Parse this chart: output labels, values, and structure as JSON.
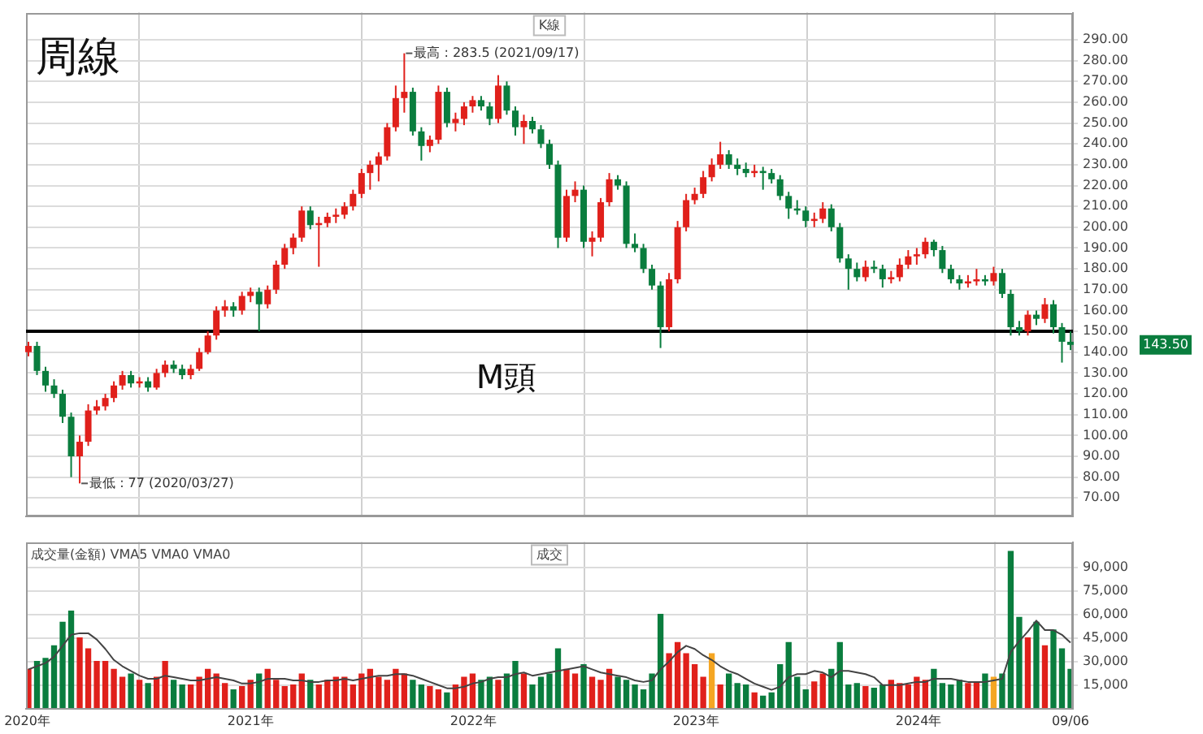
{
  "chart_data": [
    {
      "type": "candlestick",
      "title": "周線",
      "tick_labels": "y",
      "grid": true,
      "x": [
        "2020-01-03",
        "2020-01-17",
        "2020-01-31",
        "2020-02-14",
        "2020-02-28",
        "2020-03-13",
        "2020-03-27",
        "2020-04-10",
        "2020-04-24",
        "2020-05-08",
        "2020-05-22",
        "2020-06-05",
        "2020-06-19",
        "2020-07-03",
        "2020-07-17",
        "2020-07-31",
        "2020-08-14",
        "2020-08-28",
        "2020-09-11",
        "2020-09-25",
        "2020-10-09",
        "2020-10-23",
        "2020-11-06",
        "2020-11-20",
        "2020-12-04",
        "2020-12-18",
        "2021-01-01",
        "2021-01-15",
        "2021-01-29",
        "2021-02-12",
        "2021-02-26",
        "2021-03-12",
        "2021-03-26",
        "2021-04-09",
        "2021-04-23",
        "2021-05-07",
        "2021-05-21",
        "2021-06-04",
        "2021-06-18",
        "2021-07-02",
        "2021-07-16",
        "2021-07-30",
        "2021-08-13",
        "2021-08-27",
        "2021-09-10",
        "2021-09-24",
        "2021-10-08",
        "2021-10-22",
        "2021-11-05",
        "2021-11-19",
        "2021-12-03",
        "2021-12-17",
        "2021-12-31",
        "2022-01-14",
        "2022-01-28",
        "2022-02-11",
        "2022-02-25",
        "2022-03-11",
        "2022-03-25",
        "2022-04-08",
        "2022-04-22",
        "2022-05-06",
        "2022-05-20",
        "2022-06-03",
        "2022-06-17",
        "2022-07-01",
        "2022-07-15",
        "2022-07-29",
        "2022-08-12",
        "2022-08-26",
        "2022-09-09",
        "2022-09-23",
        "2022-10-07",
        "2022-10-21",
        "2022-11-04",
        "2022-11-18",
        "2022-12-02",
        "2022-12-16",
        "2022-12-30",
        "2023-01-13",
        "2023-01-27",
        "2023-02-10",
        "2023-02-24",
        "2023-03-10",
        "2023-03-24",
        "2023-04-07",
        "2023-04-21",
        "2023-05-05",
        "2023-05-19",
        "2023-06-02",
        "2023-06-16",
        "2023-06-30",
        "2023-07-14",
        "2023-07-28",
        "2023-08-11",
        "2023-08-25",
        "2023-09-08",
        "2023-09-22",
        "2023-10-06",
        "2023-10-20",
        "2023-11-03",
        "2023-11-17",
        "2023-12-01",
        "2023-12-15",
        "2023-12-29",
        "2024-01-12",
        "2024-01-26",
        "2024-02-09",
        "2024-02-23",
        "2024-03-08",
        "2024-03-22",
        "2024-04-05",
        "2024-04-19",
        "2024-05-03",
        "2024-05-17",
        "2024-05-31",
        "2024-06-14",
        "2024-06-28",
        "2024-07-12",
        "2024-07-26",
        "2024-08-09",
        "2024-08-23",
        "2024-09-06"
      ],
      "xlim": [
        "2019-12-30",
        "2024-09-10"
      ],
      "xticks": [
        {
          "value": "2020-01-01",
          "label": null
        },
        {
          "value": "2021-01-01",
          "label": null
        },
        {
          "value": "2022-01-01",
          "label": null
        },
        {
          "value": "2023-01-01",
          "label": null
        },
        {
          "value": "2024-01-01",
          "label": null
        },
        {
          "value": "2024-09-06",
          "label": null
        }
      ],
      "ohlc": [
        [
          140,
          145,
          138,
          143
        ],
        [
          143,
          145,
          129,
          131
        ],
        [
          131,
          133,
          121,
          124
        ],
        [
          124,
          127,
          118,
          120
        ],
        [
          120,
          122,
          106,
          109
        ],
        [
          109,
          111,
          80,
          90
        ],
        [
          90,
          100,
          77,
          97
        ],
        [
          97,
          115,
          95,
          112
        ],
        [
          112,
          117,
          110,
          114
        ],
        [
          114,
          120,
          112,
          118
        ],
        [
          118,
          126,
          116,
          124
        ],
        [
          124,
          131,
          122,
          129
        ],
        [
          129,
          131,
          123,
          125
        ],
        [
          125,
          128,
          123,
          126
        ],
        [
          126,
          128,
          121,
          123
        ],
        [
          123,
          132,
          122,
          130
        ],
        [
          130,
          136,
          128,
          134
        ],
        [
          134,
          136,
          130,
          132
        ],
        [
          132,
          134,
          127,
          129
        ],
        [
          129,
          134,
          127,
          132
        ],
        [
          132,
          142,
          131,
          140
        ],
        [
          140,
          150,
          139,
          148
        ],
        [
          148,
          162,
          146,
          160
        ],
        [
          160,
          165,
          157,
          162
        ],
        [
          162,
          164,
          157,
          160
        ],
        [
          160,
          169,
          158,
          167
        ],
        [
          167,
          171,
          164,
          169
        ],
        [
          169,
          171,
          150,
          163
        ],
        [
          163,
          172,
          161,
          170
        ],
        [
          170,
          184,
          168,
          182
        ],
        [
          182,
          192,
          180,
          190
        ],
        [
          190,
          197,
          187,
          195
        ],
        [
          195,
          210,
          193,
          208
        ],
        [
          208,
          210,
          199,
          201
        ],
        [
          201,
          205,
          181,
          202
        ],
        [
          202,
          207,
          200,
          205
        ],
        [
          205,
          209,
          202,
          206
        ],
        [
          206,
          212,
          204,
          210
        ],
        [
          210,
          218,
          208,
          216
        ],
        [
          216,
          228,
          214,
          226
        ],
        [
          226,
          232,
          218,
          230
        ],
        [
          230,
          236,
          222,
          234
        ],
        [
          234,
          250,
          232,
          248
        ],
        [
          248,
          268,
          246,
          262
        ],
        [
          262,
          283.5,
          255,
          265
        ],
        [
          265,
          267,
          244,
          246
        ],
        [
          246,
          248,
          232,
          239
        ],
        [
          239,
          244,
          236,
          242
        ],
        [
          242,
          268,
          240,
          265
        ],
        [
          265,
          267,
          248,
          250
        ],
        [
          250,
          255,
          246,
          252
        ],
        [
          252,
          260,
          249,
          258
        ],
        [
          258,
          263,
          255,
          261
        ],
        [
          261,
          263,
          256,
          258
        ],
        [
          258,
          260,
          249,
          252
        ],
        [
          252,
          273,
          250,
          268
        ],
        [
          268,
          270,
          254,
          256
        ],
        [
          256,
          258,
          244,
          248
        ],
        [
          248,
          254,
          240,
          251
        ],
        [
          251,
          253,
          245,
          247
        ],
        [
          247,
          249,
          238,
          240
        ],
        [
          240,
          242,
          228,
          230
        ],
        [
          230,
          232,
          190,
          195
        ],
        [
          195,
          218,
          193,
          215
        ],
        [
          215,
          222,
          212,
          218
        ],
        [
          218,
          220,
          190,
          193
        ],
        [
          193,
          198,
          186,
          195
        ],
        [
          195,
          214,
          193,
          212
        ],
        [
          212,
          226,
          210,
          223
        ],
        [
          223,
          225,
          218,
          220
        ],
        [
          220,
          222,
          190,
          192
        ],
        [
          192,
          197,
          188,
          190
        ],
        [
          190,
          192,
          178,
          180
        ],
        [
          180,
          182,
          170,
          172
        ],
        [
          172,
          174,
          142,
          152
        ],
        [
          152,
          178,
          150,
          175
        ],
        [
          175,
          203,
          173,
          200
        ],
        [
          200,
          216,
          198,
          213
        ],
        [
          213,
          219,
          211,
          216
        ],
        [
          216,
          227,
          214,
          224
        ],
        [
          224,
          233,
          222,
          230
        ],
        [
          230,
          241,
          228,
          235
        ],
        [
          235,
          237,
          228,
          230
        ],
        [
          230,
          233,
          225,
          228
        ],
        [
          228,
          231,
          224,
          226
        ],
        [
          226,
          230,
          224,
          227
        ],
        [
          227,
          229,
          218,
          226
        ],
        [
          226,
          228,
          221,
          223
        ],
        [
          223,
          225,
          213,
          215
        ],
        [
          215,
          217,
          204,
          209
        ],
        [
          209,
          213,
          206,
          208
        ],
        [
          208,
          210,
          200,
          203
        ],
        [
          203,
          207,
          200,
          204
        ],
        [
          204,
          212,
          202,
          209
        ],
        [
          209,
          211,
          198,
          200
        ],
        [
          200,
          202,
          183,
          185
        ],
        [
          185,
          187,
          170,
          180
        ],
        [
          180,
          183,
          174,
          176
        ],
        [
          176,
          184,
          174,
          181
        ],
        [
          181,
          184,
          178,
          180
        ],
        [
          180,
          182,
          171,
          175
        ],
        [
          175,
          179,
          173,
          176
        ],
        [
          176,
          185,
          174,
          182
        ],
        [
          182,
          189,
          180,
          186
        ],
        [
          186,
          190,
          182,
          187
        ],
        [
          187,
          195,
          185,
          193
        ],
        [
          193,
          194,
          186,
          189
        ],
        [
          189,
          191,
          178,
          180
        ],
        [
          180,
          182,
          173,
          175
        ],
        [
          175,
          177,
          170,
          173
        ],
        [
          173,
          177,
          171,
          174
        ],
        [
          174,
          180,
          172,
          175
        ],
        [
          175,
          177,
          172,
          174
        ],
        [
          174,
          181,
          172,
          178
        ],
        [
          178,
          180,
          166,
          168
        ],
        [
          168,
          170,
          148,
          152
        ],
        [
          152,
          155,
          148,
          150
        ],
        [
          150,
          160,
          148,
          158
        ],
        [
          158,
          160,
          153,
          156
        ],
        [
          156,
          166,
          154,
          163
        ],
        [
          163,
          165,
          149,
          152
        ],
        [
          152,
          154,
          135,
          145
        ],
        [
          145,
          150,
          141,
          143.5
        ]
      ],
      "colors": [
        "#e0201b",
        "#0a7d3e",
        "#0a7d3e",
        "#0a7d3e",
        "#0a7d3e",
        "#0a7d3e",
        "#e0201b",
        "#e0201b",
        "#e0201b",
        "#e0201b",
        "#e0201b",
        "#e0201b",
        "#0a7d3e",
        "#e0201b",
        "#0a7d3e",
        "#e0201b",
        "#e0201b",
        "#0a7d3e",
        "#0a7d3e",
        "#e0201b",
        "#e0201b",
        "#e0201b",
        "#e0201b",
        "#e0201b",
        "#0a7d3e",
        "#e0201b",
        "#e0201b",
        "#0a7d3e",
        "#e0201b",
        "#e0201b",
        "#e0201b",
        "#e0201b",
        "#e0201b",
        "#0a7d3e",
        "#e0201b",
        "#e0201b",
        "#e0201b",
        "#e0201b",
        "#e0201b",
        "#e0201b",
        "#e0201b",
        "#e0201b",
        "#e0201b",
        "#e0201b",
        "#e0201b",
        "#0a7d3e",
        "#0a7d3e",
        "#e0201b",
        "#e0201b",
        "#0a7d3e",
        "#e0201b",
        "#e0201b",
        "#e0201b",
        "#0a7d3e",
        "#0a7d3e",
        "#e0201b",
        "#0a7d3e",
        "#0a7d3e",
        "#e0201b",
        "#0a7d3e",
        "#0a7d3e",
        "#0a7d3e",
        "#0a7d3e",
        "#e0201b",
        "#e0201b",
        "#0a7d3e",
        "#e0201b",
        "#e0201b",
        "#e0201b",
        "#0a7d3e",
        "#0a7d3e",
        "#0a7d3e",
        "#0a7d3e",
        "#0a7d3e",
        "#0a7d3e",
        "#e0201b",
        "#e0201b",
        "#e0201b",
        "#e0201b",
        "#e0201b",
        "#e0201b",
        "#e0201b",
        "#0a7d3e",
        "#0a7d3e",
        "#0a7d3e",
        "#e0201b",
        "#0a7d3e",
        "#0a7d3e",
        "#0a7d3e",
        "#0a7d3e",
        "#0a7d3e",
        "#0a7d3e",
        "#e0201b",
        "#e0201b",
        "#0a7d3e",
        "#0a7d3e",
        "#0a7d3e",
        "#0a7d3e",
        "#e0201b",
        "#0a7d3e",
        "#0a7d3e",
        "#e0201b",
        "#e0201b",
        "#e0201b",
        "#e0201b",
        "#e0201b",
        "#0a7d3e",
        "#0a7d3e",
        "#0a7d3e",
        "#0a7d3e",
        "#e0201b",
        "#e0201b",
        "#0a7d3e",
        "#e0201b",
        "#0a7d3e",
        "#0a7d3e",
        "#0a7d3e",
        "#e0201b",
        "#0a7d3e",
        "#e0201b",
        "#0a7d3e",
        "#0a7d3e",
        "#0a7d3e"
      ],
      "ylim": [
        61,
        303
      ],
      "yticks": [
        {
          "value": 70,
          "label": "70.00"
        },
        {
          "value": 80,
          "label": "80.00"
        },
        {
          "value": 90,
          "label": "90.00"
        },
        {
          "value": 100,
          "label": "100.00"
        },
        {
          "value": 110,
          "label": "110.00"
        },
        {
          "value": 120,
          "label": "120.00"
        },
        {
          "value": 130,
          "label": "130.00"
        },
        {
          "value": 140,
          "label": "140.00"
        },
        {
          "value": 150,
          "label": "150.00"
        },
        {
          "value": 160,
          "label": "160.00"
        },
        {
          "value": 170,
          "label": "170.00"
        },
        {
          "value": 180,
          "label": "180.00"
        },
        {
          "value": 190,
          "label": "190.00"
        },
        {
          "value": 200,
          "label": "200.00"
        },
        {
          "value": 210,
          "label": "210.00"
        },
        {
          "value": 220,
          "label": "220.00"
        },
        {
          "value": 230,
          "label": "230.00"
        },
        {
          "value": 240,
          "label": "240.00"
        },
        {
          "value": 250,
          "label": "250.00"
        },
        {
          "value": 260,
          "label": "260.00"
        },
        {
          "value": 270,
          "label": "270.00"
        },
        {
          "value": 280,
          "label": "280.00"
        },
        {
          "value": 290,
          "label": "290.00"
        }
      ],
      "ref_lines": [
        {
          "axis": "y",
          "value": 150,
          "label": "M頭",
          "color": "#000000"
        }
      ],
      "annotations": [
        {
          "text": "最高 : 283.5 (2021/09/17)",
          "x": "2021-09-10",
          "y": 283.5
        },
        {
          "text": "最低 : 77 (2020/03/27)",
          "x": "2020-03-27",
          "y": 77
        },
        "K線",
        "143.50"
      ]
    },
    {
      "type": "bar",
      "grid": true,
      "x": [
        "2020-01-03",
        "2020-01-17",
        "2020-01-31",
        "2020-02-14",
        "2020-02-28",
        "2020-03-13",
        "2020-03-27",
        "2020-04-10",
        "2020-04-24",
        "2020-05-08",
        "2020-05-22",
        "2020-06-05",
        "2020-06-19",
        "2020-07-03",
        "2020-07-17",
        "2020-07-31",
        "2020-08-14",
        "2020-08-28",
        "2020-09-11",
        "2020-09-25",
        "2020-10-09",
        "2020-10-23",
        "2020-11-06",
        "2020-11-20",
        "2020-12-04",
        "2020-12-18",
        "2021-01-01",
        "2021-01-15",
        "2021-01-29",
        "2021-02-12",
        "2021-02-26",
        "2021-03-12",
        "2021-03-26",
        "2021-04-09",
        "2021-04-23",
        "2021-05-07",
        "2021-05-21",
        "2021-06-04",
        "2021-06-18",
        "2021-07-02",
        "2021-07-16",
        "2021-07-30",
        "2021-08-13",
        "2021-08-27",
        "2021-09-10",
        "2021-09-24",
        "2021-10-08",
        "2021-10-22",
        "2021-11-05",
        "2021-11-19",
        "2021-12-03",
        "2021-12-17",
        "2021-12-31",
        "2022-01-14",
        "2022-01-28",
        "2022-02-11",
        "2022-02-25",
        "2022-03-11",
        "2022-03-25",
        "2022-04-08",
        "2022-04-22",
        "2022-05-06",
        "2022-05-20",
        "2022-06-03",
        "2022-06-17",
        "2022-07-01",
        "2022-07-15",
        "2022-07-29",
        "2022-08-12",
        "2022-08-26",
        "2022-09-09",
        "2022-09-23",
        "2022-10-07",
        "2022-10-21",
        "2022-11-04",
        "2022-11-18",
        "2022-12-02",
        "2022-12-16",
        "2022-12-30",
        "2023-01-13",
        "2023-01-27",
        "2023-02-10",
        "2023-02-24",
        "2023-03-10",
        "2023-03-24",
        "2023-04-07",
        "2023-04-21",
        "2023-05-05",
        "2023-05-19",
        "2023-06-02",
        "2023-06-16",
        "2023-06-30",
        "2023-07-14",
        "2023-07-28",
        "2023-08-11",
        "2023-08-25",
        "2023-09-08",
        "2023-09-22",
        "2023-10-06",
        "2023-10-20",
        "2023-11-03",
        "2023-11-17",
        "2023-12-01",
        "2023-12-15",
        "2023-12-29",
        "2024-01-12",
        "2024-01-26",
        "2024-02-09",
        "2024-02-23",
        "2024-03-08",
        "2024-03-22",
        "2024-04-05",
        "2024-04-19",
        "2024-05-03",
        "2024-05-17",
        "2024-05-31",
        "2024-06-14",
        "2024-06-28",
        "2024-07-12",
        "2024-07-26",
        "2024-08-09",
        "2024-08-23",
        "2024-09-06"
      ],
      "xlim": [
        "2019-12-30",
        "2024-09-10"
      ],
      "xticks": [
        {
          "value": "2020-01-01",
          "label": "2020年"
        },
        {
          "value": "2021-01-01",
          "label": "2021年"
        },
        {
          "value": "2022-01-01",
          "label": "2022年"
        },
        {
          "value": "2023-01-01",
          "label": "2023年"
        },
        {
          "value": "2024-01-01",
          "label": "2024年"
        },
        {
          "value": "2024-09-06",
          "label": "09/06"
        }
      ],
      "series": [
        {
          "type": "bar",
          "colors": [
            "#e0201b",
            "#0a7d3e",
            "#0a7d3e",
            "#0a7d3e",
            "#0a7d3e",
            "#0a7d3e",
            "#e0201b",
            "#e0201b",
            "#e0201b",
            "#e0201b",
            "#e0201b",
            "#e0201b",
            "#0a7d3e",
            "#e0201b",
            "#0a7d3e",
            "#e0201b",
            "#e0201b",
            "#0a7d3e",
            "#0a7d3e",
            "#e0201b",
            "#e0201b",
            "#e0201b",
            "#e0201b",
            "#e0201b",
            "#0a7d3e",
            "#e0201b",
            "#e0201b",
            "#0a7d3e",
            "#e0201b",
            "#e0201b",
            "#e0201b",
            "#e0201b",
            "#e0201b",
            "#0a7d3e",
            "#e0201b",
            "#e0201b",
            "#e0201b",
            "#e0201b",
            "#e0201b",
            "#e0201b",
            "#e0201b",
            "#e0201b",
            "#e0201b",
            "#e0201b",
            "#e0201b",
            "#0a7d3e",
            "#0a7d3e",
            "#e0201b",
            "#e0201b",
            "#0a7d3e",
            "#e0201b",
            "#e0201b",
            "#e0201b",
            "#0a7d3e",
            "#0a7d3e",
            "#e0201b",
            "#0a7d3e",
            "#0a7d3e",
            "#e0201b",
            "#0a7d3e",
            "#0a7d3e",
            "#0a7d3e",
            "#0a7d3e",
            "#e0201b",
            "#e0201b",
            "#0a7d3e",
            "#e0201b",
            "#e0201b",
            "#e0201b",
            "#0a7d3e",
            "#0a7d3e",
            "#0a7d3e",
            "#0a7d3e",
            "#0a7d3e",
            "#0a7d3e",
            "#e0201b",
            "#e0201b",
            "#e0201b",
            "#e0201b",
            "#e0201b",
            "#f5a623",
            "#e0201b",
            "#0a7d3e",
            "#0a7d3e",
            "#0a7d3e",
            "#e0201b",
            "#0a7d3e",
            "#0a7d3e",
            "#0a7d3e",
            "#0a7d3e",
            "#0a7d3e",
            "#0a7d3e",
            "#e0201b",
            "#e0201b",
            "#0a7d3e",
            "#0a7d3e",
            "#0a7d3e",
            "#0a7d3e",
            "#e0201b",
            "#0a7d3e",
            "#0a7d3e",
            "#e0201b",
            "#e0201b",
            "#e0201b",
            "#e0201b",
            "#e0201b",
            "#0a7d3e",
            "#0a7d3e",
            "#0a7d3e",
            "#0a7d3e",
            "#e0201b",
            "#e0201b",
            "#0a7d3e",
            "#f5a623",
            "#0a7d3e",
            "#0a7d3e",
            "#0a7d3e",
            "#e0201b",
            "#0a7d3e",
            "#e0201b",
            "#0a7d3e",
            "#0a7d3e",
            "#0a7d3e"
          ],
          "values": [
            25000,
            30000,
            32000,
            40000,
            55000,
            62000,
            45000,
            38000,
            30000,
            30000,
            25000,
            20000,
            22000,
            18000,
            16000,
            20000,
            30000,
            18000,
            15000,
            15000,
            20000,
            25000,
            22000,
            16000,
            12000,
            14000,
            18000,
            22000,
            25000,
            18000,
            14000,
            15000,
            22000,
            18000,
            15000,
            18000,
            20000,
            20000,
            15000,
            22000,
            25000,
            20000,
            18000,
            25000,
            22000,
            18000,
            15000,
            14000,
            12000,
            10000,
            15000,
            20000,
            22000,
            18000,
            20000,
            18000,
            22000,
            30000,
            22000,
            15000,
            20000,
            22000,
            38000,
            25000,
            22000,
            28000,
            20000,
            18000,
            25000,
            20000,
            18000,
            15000,
            12000,
            22000,
            60000,
            35000,
            42000,
            35000,
            28000,
            20000,
            35000,
            15000,
            22000,
            16000,
            15000,
            10000,
            8000,
            10000,
            28000,
            42000,
            20000,
            12000,
            17000,
            22000,
            25000,
            42000,
            15000,
            16000,
            14000,
            13000,
            15000,
            18000,
            16000,
            15000,
            20000,
            18000,
            25000,
            16000,
            15000,
            18000,
            16000,
            17000,
            22000,
            20000,
            22000,
            100000,
            58000,
            45000,
            55000,
            40000,
            50000,
            38000,
            25000
          ]
        },
        {
          "type": "line",
          "color": "#444444",
          "values": [
            25000,
            27000,
            29000,
            33000,
            40000,
            47000,
            48000,
            48000,
            44000,
            38000,
            31000,
            27000,
            24000,
            21000,
            19000,
            19000,
            21000,
            20000,
            19000,
            18000,
            18000,
            19000,
            20000,
            19000,
            18000,
            16000,
            16000,
            17000,
            19000,
            19000,
            19000,
            18000,
            18000,
            17000,
            17000,
            18000,
            18000,
            19000,
            18000,
            19000,
            20000,
            21000,
            21000,
            22000,
            22000,
            21000,
            19000,
            17000,
            15000,
            13000,
            13000,
            14000,
            16000,
            17000,
            19000,
            20000,
            20000,
            22000,
            23000,
            21000,
            22000,
            23000,
            24000,
            25000,
            26000,
            27000,
            25000,
            23000,
            22000,
            21000,
            20000,
            18000,
            17000,
            18000,
            25000,
            30000,
            36000,
            40000,
            38000,
            34000,
            31000,
            27000,
            24000,
            22000,
            19000,
            16000,
            14000,
            12000,
            14000,
            20000,
            22000,
            22000,
            24000,
            23000,
            20000,
            24000,
            24000,
            23000,
            22000,
            20000,
            15000,
            15000,
            15000,
            16000,
            17000,
            17000,
            19000,
            19000,
            19000,
            18000,
            17000,
            17000,
            17000,
            18000,
            19000,
            36000,
            43000,
            49000,
            56000,
            50000,
            50000,
            47000,
            42000
          ]
        }
      ],
      "ylim": [
        0,
        106000
      ],
      "yticks": [
        {
          "value": 15000,
          "label": "15,000"
        },
        {
          "value": 30000,
          "label": "30,000"
        },
        {
          "value": 45000,
          "label": "45,000"
        },
        {
          "value": 60000,
          "label": "60,000"
        },
        {
          "value": 75000,
          "label": "75,000"
        },
        {
          "value": 90000,
          "label": "90,000"
        }
      ],
      "annotations": [
        "成交量(金額) VMA5 VMA0 VMA0",
        "成交"
      ]
    }
  ]
}
